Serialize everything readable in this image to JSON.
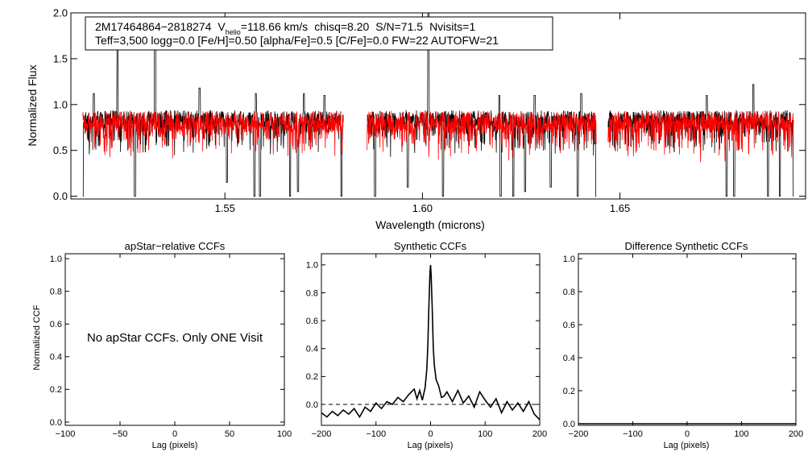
{
  "chart_data": [
    {
      "type": "line",
      "title": "",
      "xlabel": "Wavelength (microns)",
      "ylabel": "Normalized Flux",
      "xlim": [
        1.511,
        1.697
      ],
      "ylim": [
        -0.03,
        2.0
      ],
      "xticks": [
        1.55,
        1.6,
        1.65
      ],
      "xtick_labels": [
        "1.55",
        "1.60",
        "1.65"
      ],
      "yticks": [
        0.0,
        0.5,
        1.0,
        1.5,
        2.0
      ],
      "ytick_labels": [
        "0.0",
        "0.5",
        "1.0",
        "1.5",
        "2.0"
      ],
      "chips": [
        [
          1.514,
          1.58
        ],
        [
          1.586,
          1.644
        ],
        [
          1.647,
          1.694
        ]
      ],
      "emission_spikes": [
        {
          "x": 1.5228,
          "y": 1.62
        },
        {
          "x": 1.5323,
          "y": 1.72
        },
        {
          "x": 1.5168,
          "y": 1.12
        },
        {
          "x": 1.5436,
          "y": 1.18
        },
        {
          "x": 1.5578,
          "y": 1.12
        },
        {
          "x": 1.57,
          "y": 1.12
        },
        {
          "x": 1.5752,
          "y": 1.1
        },
        {
          "x": 1.6015,
          "y": 2.0
        },
        {
          "x": 1.6195,
          "y": 1.1
        },
        {
          "x": 1.6284,
          "y": 1.1
        },
        {
          "x": 1.6402,
          "y": 1.12
        },
        {
          "x": 1.672,
          "y": 1.1
        },
        {
          "x": 1.6838,
          "y": 1.22
        }
      ],
      "absorption_dips": [
        {
          "x": 1.514,
          "y": 0.0
        },
        {
          "x": 1.5272,
          "y": 0.0
        },
        {
          "x": 1.5505,
          "y": 0.15
        },
        {
          "x": 1.5575,
          "y": 0.0
        },
        {
          "x": 1.5589,
          "y": 0.0
        },
        {
          "x": 1.5665,
          "y": 0.0
        },
        {
          "x": 1.5685,
          "y": 0.05
        },
        {
          "x": 1.5795,
          "y": 0.0
        },
        {
          "x": 1.588,
          "y": 0.0
        },
        {
          "x": 1.5963,
          "y": 0.1
        },
        {
          "x": 1.6052,
          "y": 0.0
        },
        {
          "x": 1.6198,
          "y": 0.0
        },
        {
          "x": 1.623,
          "y": 0.0
        },
        {
          "x": 1.626,
          "y": 0.05
        },
        {
          "x": 1.6325,
          "y": 0.1
        },
        {
          "x": 1.6393,
          "y": 0.0
        },
        {
          "x": 1.644,
          "y": 0.0
        },
        {
          "x": 1.677,
          "y": 0.0
        },
        {
          "x": 1.6789,
          "y": 0.0
        },
        {
          "x": 1.6875,
          "y": 0.0
        },
        {
          "x": 1.6905,
          "y": 0.0
        },
        {
          "x": 1.694,
          "y": 0.0
        }
      ],
      "series": [
        {
          "name": "observed spectrum",
          "color": "#000000",
          "continuum": 0.85,
          "scatter": 0.09
        },
        {
          "name": "best-fit synthetic",
          "color": "#ff0000",
          "continuum": 0.82,
          "scatter": 0.11
        }
      ],
      "annotation": {
        "star_id": "2M17464864−2818274",
        "v_symbol": "V",
        "v_subscript": "helio",
        "v_rest": "=118.66 km/s",
        "chisq": "chisq=8.20",
        "snr": "S/N=71.5",
        "nvisits": "Nvisits=1",
        "params": "Teff=3,500 logg=0.0 [Fe/H]=0.50 [alpha/Fe]=0.5 [C/Fe]=0.0 FW=22 AUTOFW=21"
      }
    },
    {
      "type": "line",
      "title": "apStar−relative CCFs",
      "xlabel": "Lag (pixels)",
      "ylabel": "Normalized CCF",
      "xlim": [
        -100,
        100
      ],
      "ylim": [
        -0.02,
        1.03
      ],
      "xticks": [
        -100,
        -50,
        0,
        50,
        100
      ],
      "xtick_labels": [
        "−100",
        "−50",
        "0",
        "50",
        "100"
      ],
      "yticks": [
        0.0,
        0.2,
        0.4,
        0.6,
        0.8,
        1.0
      ],
      "ytick_labels": [
        "0.0",
        "0.2",
        "0.4",
        "0.6",
        "0.8",
        "1.0"
      ],
      "message": "No apStar CCFs.  Only ONE Visit",
      "series": []
    },
    {
      "type": "line",
      "title": "Synthetic CCFs",
      "xlabel": "Lag (pixels)",
      "ylabel": "",
      "xlim": [
        -200,
        200
      ],
      "ylim": [
        -0.15,
        1.08
      ],
      "xticks": [
        -200,
        -100,
        0,
        100,
        200
      ],
      "xtick_labels": [
        "−200",
        "−100",
        "0",
        "100",
        "200"
      ],
      "yticks": [
        0.0,
        0.2,
        0.4,
        0.6,
        0.8,
        1.0
      ],
      "ytick_labels": [
        "0.0",
        "0.2",
        "0.4",
        "0.6",
        "0.8",
        "1.0"
      ],
      "zero_line": 0.0,
      "series": [
        {
          "name": "synthetic CCF",
          "color": "#000000",
          "x": [
            -200,
            -190,
            -180,
            -170,
            -160,
            -150,
            -140,
            -130,
            -120,
            -110,
            -100,
            -90,
            -80,
            -70,
            -60,
            -50,
            -40,
            -30,
            -25,
            -20,
            -15,
            -10,
            -7,
            -5,
            -3,
            -1,
            0,
            1,
            3,
            5,
            7,
            10,
            15,
            20,
            25,
            30,
            40,
            50,
            60,
            70,
            80,
            90,
            100,
            110,
            120,
            130,
            140,
            150,
            160,
            170,
            180,
            190,
            200
          ],
          "y": [
            -0.06,
            -0.09,
            -0.05,
            -0.08,
            -0.04,
            -0.07,
            -0.03,
            -0.09,
            -0.02,
            -0.05,
            0.01,
            -0.03,
            0.02,
            0.0,
            0.05,
            0.02,
            0.07,
            0.11,
            0.04,
            0.1,
            0.03,
            0.12,
            0.25,
            0.42,
            0.72,
            0.95,
            1.0,
            0.93,
            0.7,
            0.4,
            0.28,
            0.18,
            0.13,
            0.05,
            0.06,
            0.09,
            0.02,
            0.1,
            0.01,
            0.06,
            -0.02,
            0.09,
            0.03,
            -0.02,
            0.04,
            -0.06,
            0.02,
            -0.04,
            0.01,
            -0.05,
            0.02,
            -0.07,
            -0.11
          ]
        }
      ]
    },
    {
      "type": "line",
      "title": "Difference Synthetic CCFs",
      "xlabel": "Lag (pixels)",
      "ylabel": "",
      "xlim": [
        -200,
        200
      ],
      "ylim": [
        -0.01,
        1.03
      ],
      "xticks": [
        -200,
        -100,
        0,
        100,
        200
      ],
      "xtick_labels": [
        "−200",
        "−100",
        "0",
        "100",
        "200"
      ],
      "yticks": [
        0.0,
        0.2,
        0.4,
        0.6,
        0.8,
        1.0
      ],
      "ytick_labels": [
        "0.0",
        "0.2",
        "0.4",
        "0.6",
        "0.8",
        "1.0"
      ],
      "series": [
        {
          "name": "difference CCF",
          "color": "#000000",
          "x": [
            -200,
            200
          ],
          "y": [
            0.0,
            0.0
          ]
        }
      ]
    }
  ]
}
